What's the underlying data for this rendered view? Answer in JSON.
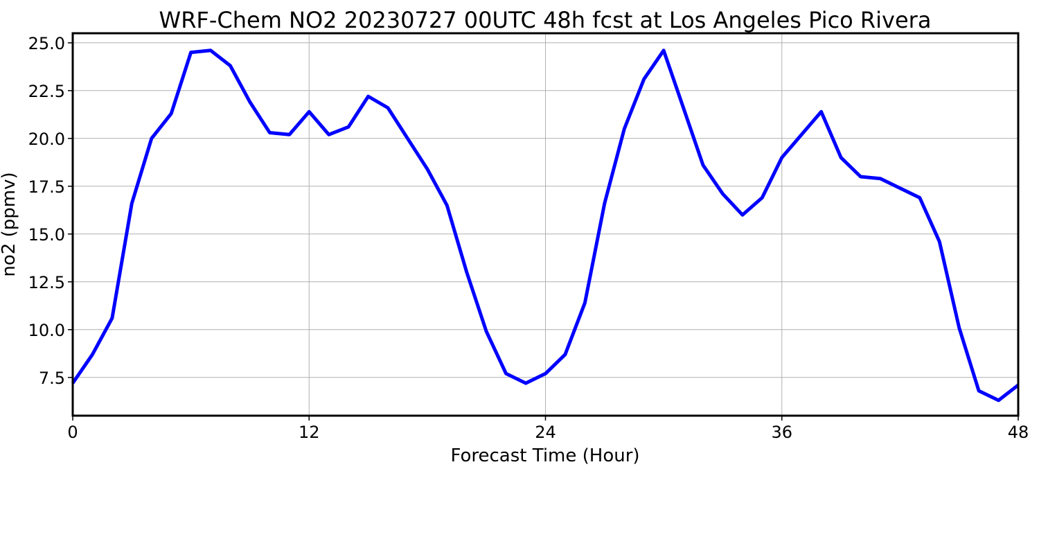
{
  "chart_data": {
    "type": "line",
    "title": "WRF-Chem NO2  20230727 00UTC 48h fcst at Los Angeles Pico Rivera",
    "xlabel": "Forecast Time (Hour)",
    "ylabel": "no2  (ppmv)",
    "xlim": [
      0,
      48
    ],
    "ylim": [
      5.5,
      25.5
    ],
    "xticks": [
      0,
      12,
      24,
      36,
      48
    ],
    "xtick_labels": [
      "0",
      "12",
      "24",
      "36",
      "48"
    ],
    "yticks": [
      7.5,
      10.0,
      12.5,
      15.0,
      17.5,
      20.0,
      22.5,
      25.0
    ],
    "ytick_labels": [
      "7.5",
      "10.0",
      "12.5",
      "15.0",
      "17.5",
      "20.0",
      "22.5",
      "25.0"
    ],
    "grid": true,
    "line_color": "#0000ff",
    "series": [
      {
        "x": [
          0,
          1,
          2,
          3,
          4,
          5,
          6,
          7,
          8,
          9,
          10,
          11,
          12,
          13,
          14,
          15,
          16,
          17,
          18,
          19,
          20,
          21,
          22,
          23,
          24,
          25,
          26,
          27,
          28,
          29,
          30,
          31,
          32,
          33,
          34,
          35,
          36,
          37,
          38,
          39,
          40,
          41,
          42,
          43,
          44,
          45,
          46,
          47,
          48
        ],
        "values": [
          7.2,
          8.7,
          10.6,
          16.6,
          20.0,
          21.3,
          24.5,
          24.6,
          23.8,
          21.9,
          20.3,
          20.2,
          21.4,
          20.2,
          20.6,
          22.2,
          21.6,
          20.0,
          18.4,
          16.5,
          13.0,
          9.9,
          7.7,
          7.2,
          7.7,
          8.7,
          11.4,
          16.6,
          20.5,
          23.1,
          24.6,
          21.6,
          18.6,
          17.1,
          16.0,
          16.9,
          19.0,
          20.2,
          21.4,
          19.0,
          18.0,
          17.9,
          17.4,
          16.9,
          14.6,
          10.1,
          6.8,
          6.3,
          7.1
        ]
      }
    ]
  }
}
